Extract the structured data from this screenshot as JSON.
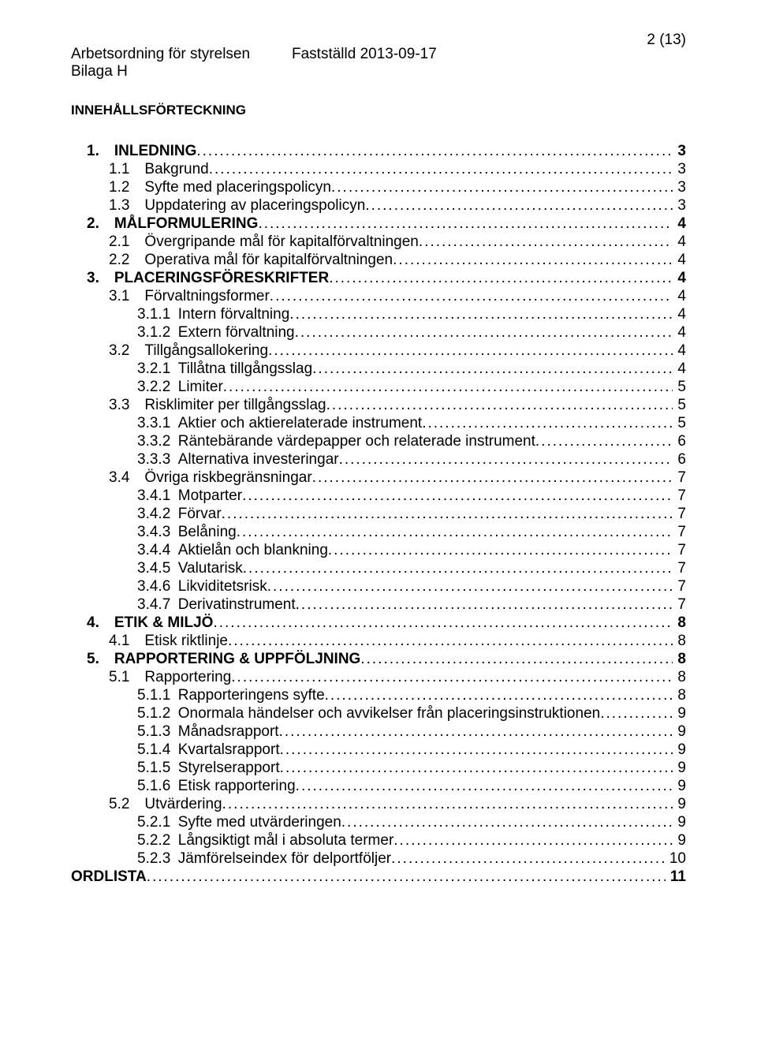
{
  "header": {
    "title": "Arbetsordning för styrelsen",
    "date_label": "Fastställd 2013-09-17",
    "annex": "Bilaga H",
    "page_indicator": "2 (13)"
  },
  "toc_heading": "INNEHÅLLSFÖRTECKNING",
  "toc": [
    {
      "lvl": 0,
      "bold": true,
      "label": "1.",
      "title": "INLEDNING",
      "page": "3"
    },
    {
      "lvl": 1,
      "label": "1.1",
      "title": "Bakgrund",
      "page": "3"
    },
    {
      "lvl": 1,
      "label": "1.2",
      "title": "Syfte med placeringspolicyn",
      "page": "3"
    },
    {
      "lvl": 1,
      "label": "1.3",
      "title": "Uppdatering av placeringspolicyn",
      "page": "3"
    },
    {
      "lvl": 0,
      "bold": true,
      "label": "2.",
      "title": "MÅLFORMULERING",
      "page": "4"
    },
    {
      "lvl": 1,
      "label": "2.1",
      "title": "Övergripande mål för kapitalförvaltningen",
      "page": "4"
    },
    {
      "lvl": 1,
      "label": "2.2",
      "title": "Operativa mål för kapitalförvaltningen",
      "page": "4"
    },
    {
      "lvl": 0,
      "bold": true,
      "label": "3.",
      "title": "PLACERINGSFÖRESKRIFTER",
      "page": "4"
    },
    {
      "lvl": 1,
      "label": "3.1",
      "title": "Förvaltningsformer",
      "page": "4"
    },
    {
      "lvl": 2,
      "label": "3.1.1",
      "title": "Intern förvaltning",
      "page": "4"
    },
    {
      "lvl": 2,
      "label": "3.1.2",
      "title": "Extern förvaltning",
      "page": "4"
    },
    {
      "lvl": 1,
      "label": "3.2",
      "title": "Tillgångsallokering",
      "page": "4"
    },
    {
      "lvl": 2,
      "label": "3.2.1",
      "title": "Tillåtna tillgångsslag",
      "page": "4"
    },
    {
      "lvl": 2,
      "label": "3.2.2",
      "title": "Limiter",
      "page": "5"
    },
    {
      "lvl": 1,
      "label": "3.3",
      "title": "Risklimiter per tillgångsslag",
      "page": "5"
    },
    {
      "lvl": 2,
      "label": "3.3.1",
      "title": "Aktier och aktierelaterade instrument",
      "page": "5"
    },
    {
      "lvl": 2,
      "label": "3.3.2",
      "title": "Räntebärande värdepapper och relaterade instrument",
      "page": "6"
    },
    {
      "lvl": 2,
      "label": "3.3.3",
      "title": "Alternativa investeringar",
      "page": "6"
    },
    {
      "lvl": 1,
      "label": "3.4",
      "title": "Övriga riskbegränsningar",
      "page": "7"
    },
    {
      "lvl": 2,
      "label": "3.4.1",
      "title": "Motparter",
      "page": "7"
    },
    {
      "lvl": 2,
      "label": "3.4.2",
      "title": "Förvar",
      "page": "7"
    },
    {
      "lvl": 2,
      "label": "3.4.3",
      "title": "Belåning",
      "page": "7"
    },
    {
      "lvl": 2,
      "label": "3.4.4",
      "title": "Aktielån och blankning",
      "page": "7"
    },
    {
      "lvl": 2,
      "label": "3.4.5",
      "title": "Valutarisk",
      "page": "7"
    },
    {
      "lvl": 2,
      "label": "3.4.6",
      "title": "Likviditetsrisk",
      "page": "7"
    },
    {
      "lvl": 2,
      "label": "3.4.7",
      "title": "Derivatinstrument",
      "page": "7"
    },
    {
      "lvl": 0,
      "bold": true,
      "label": "4.",
      "title": "ETIK & MILJÖ",
      "page": "8"
    },
    {
      "lvl": 1,
      "label": "4.1",
      "title": "Etisk riktlinje",
      "page": "8"
    },
    {
      "lvl": 0,
      "bold": true,
      "label": "5.",
      "title": "RAPPORTERING & UPPFÖLJNING",
      "page": "8"
    },
    {
      "lvl": 1,
      "label": "5.1",
      "title": "Rapportering",
      "page": "8"
    },
    {
      "lvl": 2,
      "label": "5.1.1",
      "title": "Rapporteringens syfte",
      "page": "8"
    },
    {
      "lvl": 2,
      "label": "5.1.2",
      "title": "Onormala händelser och avvikelser från placeringsinstruktionen",
      "page": "9"
    },
    {
      "lvl": 2,
      "label": "5.1.3",
      "title": "Månadsrapport",
      "page": "9"
    },
    {
      "lvl": 2,
      "label": "5.1.4",
      "title": "Kvartalsrapport",
      "page": "9"
    },
    {
      "lvl": 2,
      "label": "5.1.5",
      "title": "Styrelserapport",
      "page": "9"
    },
    {
      "lvl": 2,
      "label": "5.1.6",
      "title": "Etisk rapportering",
      "page": "9"
    },
    {
      "lvl": 1,
      "label": "5.2",
      "title": "Utvärdering",
      "page": "9"
    },
    {
      "lvl": 2,
      "label": "5.2.1",
      "title": "Syfte med utvärderingen",
      "page": "9"
    },
    {
      "lvl": 2,
      "label": "5.2.2",
      "title": "Långsiktigt mål i absoluta termer",
      "page": "9"
    },
    {
      "lvl": 2,
      "label": "5.2.3",
      "title": "Jämförelseindex för delportföljer",
      "page": "10"
    },
    {
      "lvl": "ord",
      "bold": true,
      "label": "",
      "title": "ORDLISTA",
      "page": "11"
    }
  ]
}
